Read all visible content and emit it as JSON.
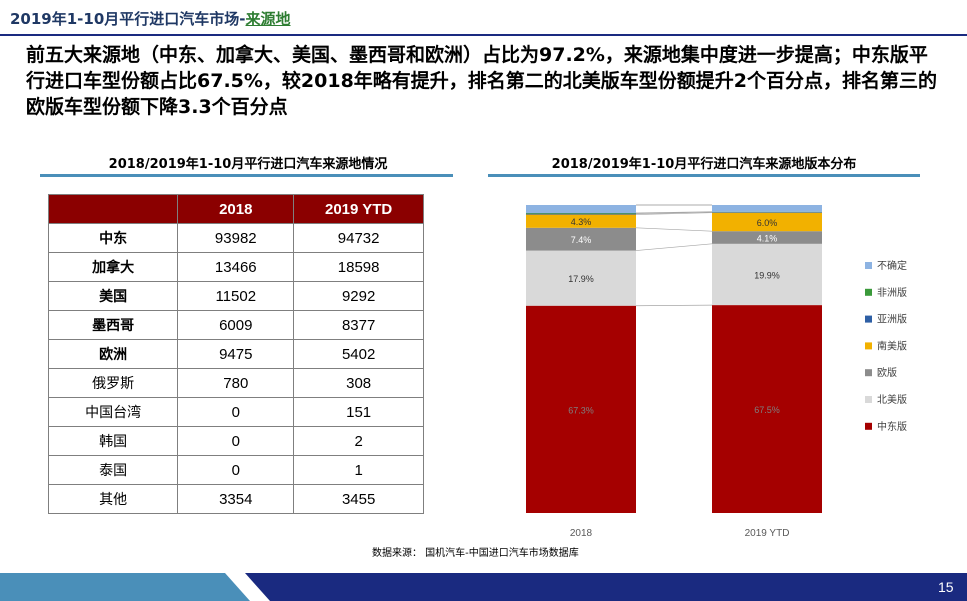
{
  "header": {
    "title": "2019年1-10月平行进口汽车市场-",
    "highlight": "来源地"
  },
  "headline": "前五大来源地（中东、加拿大、美国、墨西哥和欧洲）占比为97.2%，来源地集中度进一步提高；中东版平行进口车型份额占比67.5%，较2018年略有提升，排名第二的北美版车型份额提升2个百分点，排名第三的欧版车型份额下降3.3个百分点",
  "table_section": {
    "title": "2018/2019年1-10月平行进口汽车来源地情况",
    "headers": [
      "",
      "2018",
      "2019 YTD"
    ],
    "rows": [
      {
        "name": "中东",
        "bold": true,
        "v2018": "93982",
        "v2019": "94732"
      },
      {
        "name": "加拿大",
        "bold": true,
        "v2018": "13466",
        "v2019": "18598"
      },
      {
        "name": "美国",
        "bold": true,
        "v2018": "11502",
        "v2019": "9292"
      },
      {
        "name": "墨西哥",
        "bold": true,
        "v2018": "6009",
        "v2019": "8377"
      },
      {
        "name": "欧洲",
        "bold": true,
        "v2018": "9475",
        "v2019": "5402"
      },
      {
        "name": "俄罗斯",
        "bold": false,
        "v2018": "780",
        "v2019": "308"
      },
      {
        "name": "中国台湾",
        "bold": false,
        "v2018": "0",
        "v2019": "151"
      },
      {
        "name": "韩国",
        "bold": false,
        "v2018": "0",
        "v2019": "2"
      },
      {
        "name": "泰国",
        "bold": false,
        "v2018": "0",
        "v2019": "1"
      },
      {
        "name": "其他",
        "bold": false,
        "v2018": "3354",
        "v2019": "3455"
      }
    ]
  },
  "chart_data": {
    "type": "bar",
    "stacked": true,
    "percent_stacked": true,
    "title": "2018/2019年1-10月平行进口汽车来源地版本分布",
    "categories": [
      "2018",
      "2019 YTD"
    ],
    "series": [
      {
        "name": "中东版",
        "values": [
          67.3,
          67.5
        ],
        "labels": [
          "67.3%",
          "67.5%"
        ],
        "color": "#a50000",
        "label_color": "#7f7f7f"
      },
      {
        "name": "北美版",
        "values": [
          17.9,
          19.9
        ],
        "labels": [
          "17.9%",
          "19.9%"
        ],
        "color": "#d9d9d9",
        "label_color": "#333333"
      },
      {
        "name": "欧版",
        "values": [
          7.4,
          4.1
        ],
        "labels": [
          "7.4%",
          "4.1%"
        ],
        "color": "#8c8c8c",
        "label_color": "#ffffff"
      },
      {
        "name": "南美版",
        "values": [
          4.3,
          6.0
        ],
        "labels": [
          "4.3%",
          "6.0%"
        ],
        "color": "#f2b100",
        "label_color": "#333333"
      },
      {
        "name": "亚洲版",
        "values": [
          0.3,
          0.2
        ],
        "labels": [
          "",
          ""
        ],
        "color": "#2e5fa5",
        "label_color": "#333333"
      },
      {
        "name": "非洲版",
        "values": [
          0.2,
          0.1
        ],
        "labels": [
          "",
          ""
        ],
        "color": "#3a9a3a",
        "label_color": "#333333"
      },
      {
        "name": "不确定",
        "values": [
          2.6,
          2.2
        ],
        "labels": [
          "",
          ""
        ],
        "color": "#8db3e2",
        "label_color": "#333333"
      }
    ],
    "legend_order": [
      "不确定",
      "非洲版",
      "亚洲版",
      "南美版",
      "欧版",
      "北美版",
      "中东版"
    ],
    "legend_position": "right",
    "ylim": [
      0,
      100
    ]
  },
  "source": "数据来源： 国机汽车-中国进口汽车市场数据库",
  "page_number": "15",
  "colors": {
    "header_blue": "#1f3864",
    "accent_green": "#2e7d32",
    "table_header": "#8b0000",
    "footer_navy": "#1a2a80",
    "footer_light": "#4a8fb9"
  }
}
